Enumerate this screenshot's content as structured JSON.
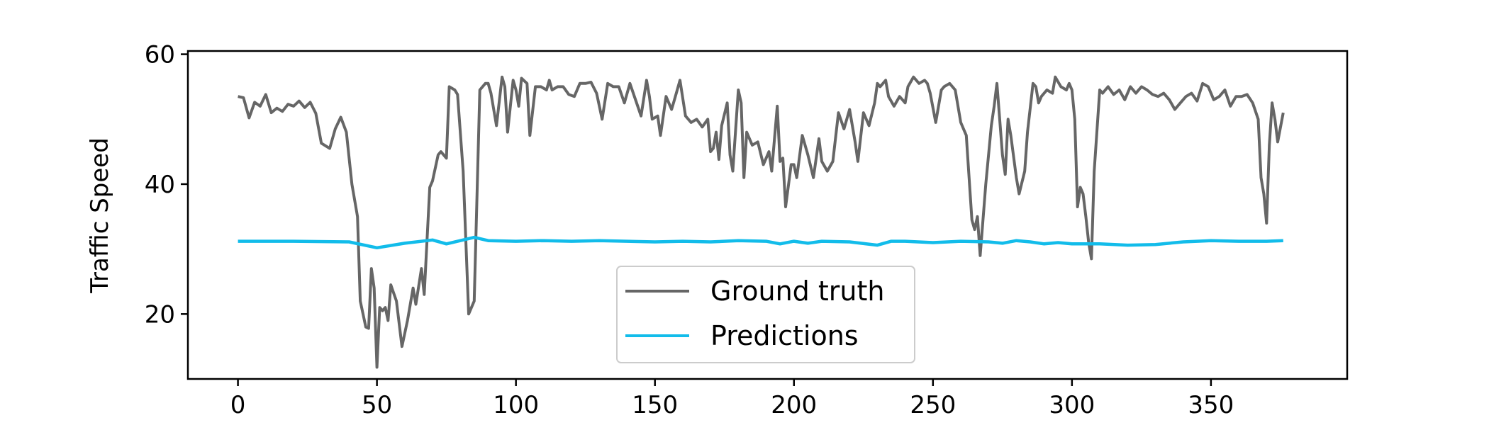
{
  "chart_data": {
    "type": "line",
    "title": "",
    "xlabel": "",
    "ylabel": "Traffic Speed",
    "xlim": [
      -18,
      399
    ],
    "ylim": [
      10,
      60.5
    ],
    "xticks": [
      0,
      50,
      100,
      150,
      200,
      250,
      300,
      350
    ],
    "yticks": [
      20,
      40,
      60
    ],
    "grid": false,
    "legend_position": "lower-center",
    "series": [
      {
        "name": "Ground truth",
        "color": "#666666",
        "points": [
          [
            0,
            53.5
          ],
          [
            2,
            53.3
          ],
          [
            4,
            50.2
          ],
          [
            6,
            52.6
          ],
          [
            8,
            52.0
          ],
          [
            10,
            53.8
          ],
          [
            12,
            51.0
          ],
          [
            14,
            51.7
          ],
          [
            16,
            51.2
          ],
          [
            18,
            52.3
          ],
          [
            20,
            52.0
          ],
          [
            22,
            52.8
          ],
          [
            24,
            51.8
          ],
          [
            26,
            52.6
          ],
          [
            28,
            50.9
          ],
          [
            30,
            46.3
          ],
          [
            33,
            45.5
          ],
          [
            35,
            48.5
          ],
          [
            37,
            50.3
          ],
          [
            39,
            48.0
          ],
          [
            41,
            40.0
          ],
          [
            43,
            35.0
          ],
          [
            44,
            22.0
          ],
          [
            46,
            18.0
          ],
          [
            47,
            17.8
          ],
          [
            48,
            27.0
          ],
          [
            49,
            24.0
          ],
          [
            50,
            11.8
          ],
          [
            51,
            21.0
          ],
          [
            52,
            20.5
          ],
          [
            53,
            21.0
          ],
          [
            54,
            19.0
          ],
          [
            55,
            24.5
          ],
          [
            57,
            22.0
          ],
          [
            59,
            15.0
          ],
          [
            61,
            19.0
          ],
          [
            63,
            24.0
          ],
          [
            64,
            21.5
          ],
          [
            66,
            27.0
          ],
          [
            67,
            23.0
          ],
          [
            69,
            39.5
          ],
          [
            70,
            40.5
          ],
          [
            72,
            44.5
          ],
          [
            73,
            45.0
          ],
          [
            75,
            44.0
          ],
          [
            76,
            55.0
          ],
          [
            78,
            54.5
          ],
          [
            79,
            53.8
          ],
          [
            81,
            42.0
          ],
          [
            83,
            20.0
          ],
          [
            85,
            22.0
          ],
          [
            87,
            54.5
          ],
          [
            89,
            55.5
          ],
          [
            90,
            55.5
          ],
          [
            91,
            54.0
          ],
          [
            93,
            49.0
          ],
          [
            95,
            56.5
          ],
          [
            96,
            55.0
          ],
          [
            97,
            48.0
          ],
          [
            99,
            56.0
          ],
          [
            100,
            54.5
          ],
          [
            101,
            52.0
          ],
          [
            102,
            56.3
          ],
          [
            104,
            55.5
          ],
          [
            105,
            47.5
          ],
          [
            107,
            55.0
          ],
          [
            109,
            55.0
          ],
          [
            111,
            54.5
          ],
          [
            112,
            56.0
          ],
          [
            113,
            54.5
          ],
          [
            115,
            55.0
          ],
          [
            117,
            55.0
          ],
          [
            119,
            53.8
          ],
          [
            121,
            53.5
          ],
          [
            123,
            55.5
          ],
          [
            125,
            55.5
          ],
          [
            127,
            55.7
          ],
          [
            129,
            54.0
          ],
          [
            131,
            50.0
          ],
          [
            133,
            55.5
          ],
          [
            135,
            55.0
          ],
          [
            137,
            55.0
          ],
          [
            139,
            52.5
          ],
          [
            141,
            55.5
          ],
          [
            143,
            53.0
          ],
          [
            145,
            50.5
          ],
          [
            147,
            56.0
          ],
          [
            148,
            53.5
          ],
          [
            149,
            50.0
          ],
          [
            151,
            50.5
          ],
          [
            152,
            47.5
          ],
          [
            154,
            53.5
          ],
          [
            156,
            51.5
          ],
          [
            157,
            53.0
          ],
          [
            159,
            56.0
          ],
          [
            161,
            50.5
          ],
          [
            163,
            49.5
          ],
          [
            165,
            50.0
          ],
          [
            167,
            48.8
          ],
          [
            169,
            50.0
          ],
          [
            170,
            45.0
          ],
          [
            171,
            45.5
          ],
          [
            172,
            48.0
          ],
          [
            173,
            43.8
          ],
          [
            174,
            49.0
          ],
          [
            176,
            52.5
          ],
          [
            177,
            44.5
          ],
          [
            178,
            42.0
          ],
          [
            180,
            54.5
          ],
          [
            181,
            52.5
          ],
          [
            182,
            41.0
          ],
          [
            183,
            48.0
          ],
          [
            185,
            46.0
          ],
          [
            187,
            46.5
          ],
          [
            189,
            43.0
          ],
          [
            191,
            45.0
          ],
          [
            192,
            42.0
          ],
          [
            194,
            52.0
          ],
          [
            195,
            43.5
          ],
          [
            196,
            44.0
          ],
          [
            197,
            36.5
          ],
          [
            199,
            43.0
          ],
          [
            200,
            43.0
          ],
          [
            201,
            41.0
          ],
          [
            203,
            47.5
          ],
          [
            205,
            44.5
          ],
          [
            207,
            41.0
          ],
          [
            209,
            47.0
          ],
          [
            210,
            43.5
          ],
          [
            212,
            42.0
          ],
          [
            214,
            43.5
          ],
          [
            216,
            51.0
          ],
          [
            218,
            48.5
          ],
          [
            220,
            51.5
          ],
          [
            222,
            46.5
          ],
          [
            223,
            43.5
          ],
          [
            225,
            51.0
          ],
          [
            227,
            49.0
          ],
          [
            229,
            52.5
          ],
          [
            230,
            55.5
          ],
          [
            231,
            55.0
          ],
          [
            233,
            56.0
          ],
          [
            234,
            53.5
          ],
          [
            236,
            52.0
          ],
          [
            238,
            53.5
          ],
          [
            240,
            52.5
          ],
          [
            241,
            55.0
          ],
          [
            243,
            56.5
          ],
          [
            245,
            55.5
          ],
          [
            247,
            56.0
          ],
          [
            248,
            55.5
          ],
          [
            249,
            54.0
          ],
          [
            251,
            49.5
          ],
          [
            253,
            54.5
          ],
          [
            254,
            55.0
          ],
          [
            256,
            55.5
          ],
          [
            258,
            54.5
          ],
          [
            260,
            49.5
          ],
          [
            262,
            47.5
          ],
          [
            264,
            34.5
          ],
          [
            265,
            33.0
          ],
          [
            266,
            35.0
          ],
          [
            267,
            29.0
          ],
          [
            269,
            40.0
          ],
          [
            271,
            49.0
          ],
          [
            272,
            52.0
          ],
          [
            273,
            55.5
          ],
          [
            275,
            44.5
          ],
          [
            276,
            41.5
          ],
          [
            277,
            50.0
          ],
          [
            278,
            47.5
          ],
          [
            280,
            41.0
          ],
          [
            281,
            38.5
          ],
          [
            283,
            42.0
          ],
          [
            284,
            48.0
          ],
          [
            286,
            55.5
          ],
          [
            287,
            55.0
          ],
          [
            288,
            52.5
          ],
          [
            289,
            53.5
          ],
          [
            291,
            54.5
          ],
          [
            293,
            54.0
          ],
          [
            294,
            56.5
          ],
          [
            296,
            55.0
          ],
          [
            298,
            54.5
          ],
          [
            299,
            55.5
          ],
          [
            300,
            54.5
          ],
          [
            301,
            50.0
          ],
          [
            302,
            36.5
          ],
          [
            303,
            39.5
          ],
          [
            304,
            38.5
          ],
          [
            305,
            35.0
          ],
          [
            306,
            31.0
          ],
          [
            307,
            28.5
          ],
          [
            308,
            42.0
          ],
          [
            310,
            54.5
          ],
          [
            311,
            54.0
          ],
          [
            313,
            55.0
          ],
          [
            315,
            53.8
          ],
          [
            317,
            54.5
          ],
          [
            319,
            53.0
          ],
          [
            321,
            55.0
          ],
          [
            323,
            54.0
          ],
          [
            325,
            55.0
          ],
          [
            327,
            54.5
          ],
          [
            329,
            53.8
          ],
          [
            331,
            53.5
          ],
          [
            333,
            54.0
          ],
          [
            335,
            53.0
          ],
          [
            337,
            51.5
          ],
          [
            339,
            52.5
          ],
          [
            341,
            53.5
          ],
          [
            343,
            54.0
          ],
          [
            345,
            52.8
          ],
          [
            347,
            55.5
          ],
          [
            349,
            55.0
          ],
          [
            351,
            53.0
          ],
          [
            353,
            53.5
          ],
          [
            355,
            54.5
          ],
          [
            357,
            52.0
          ],
          [
            359,
            53.5
          ],
          [
            361,
            53.5
          ],
          [
            363,
            53.8
          ],
          [
            365,
            52.5
          ],
          [
            367,
            50.0
          ],
          [
            368,
            41.0
          ],
          [
            369,
            38.5
          ],
          [
            370,
            34.0
          ],
          [
            371,
            46.0
          ],
          [
            372,
            52.5
          ],
          [
            373,
            50.0
          ],
          [
            374,
            46.5
          ],
          [
            376,
            51.0
          ]
        ]
      },
      {
        "name": "Predictions",
        "color": "#12bcea",
        "points": [
          [
            0,
            31.2
          ],
          [
            20,
            31.2
          ],
          [
            40,
            31.1
          ],
          [
            50,
            30.2
          ],
          [
            60,
            30.9
          ],
          [
            70,
            31.4
          ],
          [
            75,
            30.8
          ],
          [
            80,
            31.3
          ],
          [
            85,
            31.8
          ],
          [
            90,
            31.3
          ],
          [
            100,
            31.2
          ],
          [
            110,
            31.3
          ],
          [
            120,
            31.2
          ],
          [
            130,
            31.3
          ],
          [
            140,
            31.2
          ],
          [
            150,
            31.1
          ],
          [
            160,
            31.2
          ],
          [
            170,
            31.1
          ],
          [
            180,
            31.3
          ],
          [
            190,
            31.2
          ],
          [
            195,
            30.8
          ],
          [
            200,
            31.2
          ],
          [
            205,
            30.9
          ],
          [
            210,
            31.2
          ],
          [
            220,
            31.1
          ],
          [
            230,
            30.6
          ],
          [
            235,
            31.2
          ],
          [
            240,
            31.2
          ],
          [
            250,
            31.0
          ],
          [
            260,
            31.2
          ],
          [
            270,
            31.1
          ],
          [
            275,
            30.9
          ],
          [
            280,
            31.3
          ],
          [
            285,
            31.1
          ],
          [
            290,
            30.8
          ],
          [
            295,
            31.0
          ],
          [
            300,
            30.8
          ],
          [
            310,
            30.8
          ],
          [
            320,
            30.6
          ],
          [
            330,
            30.7
          ],
          [
            340,
            31.1
          ],
          [
            350,
            31.3
          ],
          [
            360,
            31.2
          ],
          [
            370,
            31.2
          ],
          [
            376,
            31.3
          ]
        ]
      }
    ]
  }
}
